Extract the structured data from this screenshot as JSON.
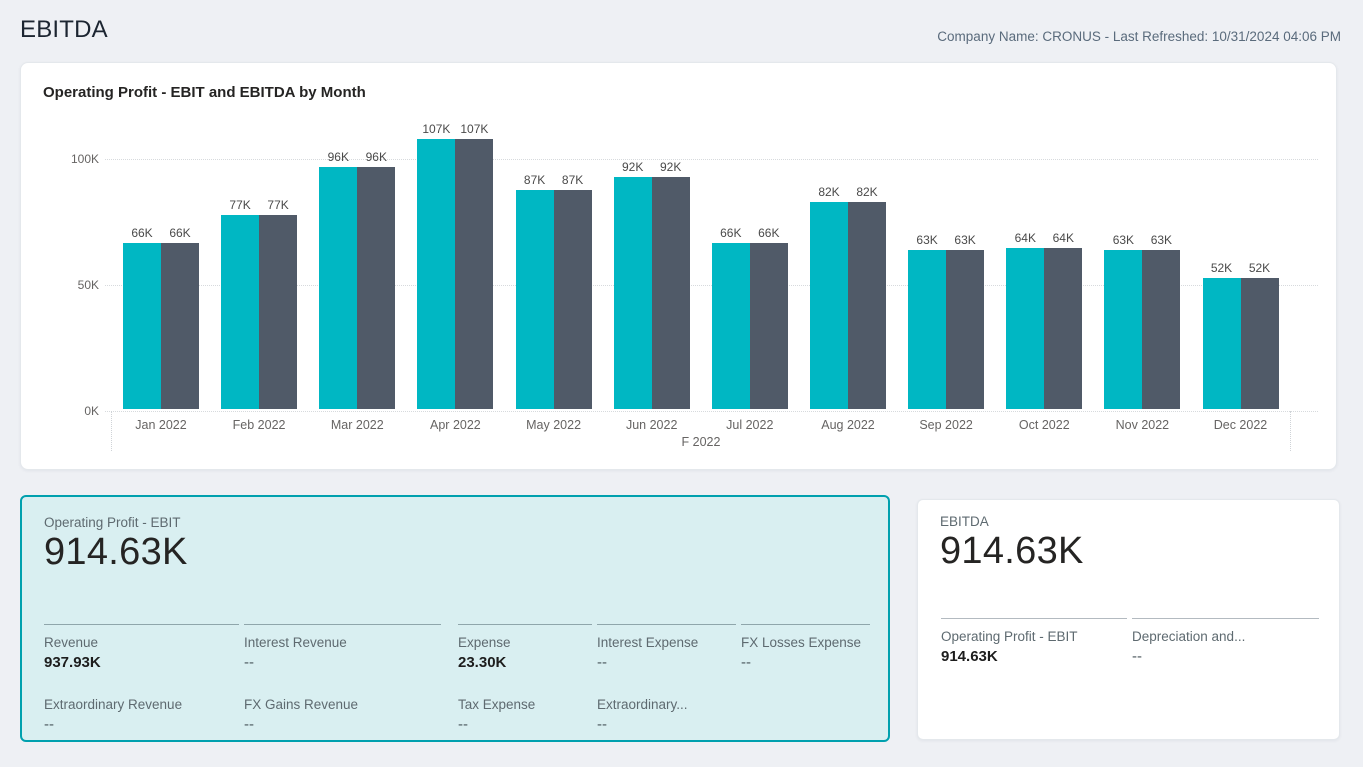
{
  "header": {
    "title": "EBITDA",
    "company_info": "Company Name: CRONUS - Last Refreshed: 10/31/2024 04:06 PM"
  },
  "chart_data": {
    "type": "bar",
    "title": "Operating Profit - EBIT and EBITDA by Month",
    "categories": [
      "Jan 2022",
      "Feb 2022",
      "Mar 2022",
      "Apr 2022",
      "May 2022",
      "Jun 2022",
      "Jul 2022",
      "Aug 2022",
      "Sep 2022",
      "Oct 2022",
      "Nov 2022",
      "Dec 2022"
    ],
    "series": [
      {
        "name": "Operating Profit - EBIT",
        "color": "#00b7c3",
        "values": [
          66,
          77,
          96,
          107,
          87,
          92,
          66,
          82,
          63,
          64,
          63,
          52
        ]
      },
      {
        "name": "EBITDA",
        "color": "#505a68",
        "values": [
          66,
          77,
          96,
          107,
          87,
          92,
          66,
          82,
          63,
          64,
          63,
          52
        ]
      }
    ],
    "bar_labels": [
      "66K",
      "77K",
      "96K",
      "107K",
      "87K",
      "92K",
      "66K",
      "82K",
      "63K",
      "64K",
      "63K",
      "52K"
    ],
    "xlabel": "F 2022",
    "ylabel": "",
    "y_ticks": [
      "0K",
      "50K",
      "100K"
    ],
    "y_unit": "K",
    "ylim": [
      0,
      110
    ],
    "grid": "horizontal-dotted",
    "legend_position": "none"
  },
  "cards": {
    "ebit": {
      "title": "Operating Profit - EBIT",
      "value": "914.63K",
      "groups": [
        {
          "rows": [
            [
              {
                "label": "Revenue",
                "value": "937.93K",
                "bold": true
              },
              {
                "label": "Interest Revenue",
                "value": "--",
                "bold": false
              }
            ],
            [
              {
                "label": "Extraordinary Revenue",
                "value": "--",
                "bold": false
              },
              {
                "label": "FX Gains Revenue",
                "value": "--",
                "bold": false
              }
            ]
          ]
        },
        {
          "rows": [
            [
              {
                "label": "Expense",
                "value": "23.30K",
                "bold": true
              },
              {
                "label": "Interest Expense",
                "value": "--",
                "bold": false
              },
              {
                "label": "FX Losses Expense",
                "value": "--",
                "bold": false
              }
            ],
            [
              {
                "label": "Tax Expense",
                "value": "--",
                "bold": false
              },
              {
                "label": "Extraordinary...",
                "value": "--",
                "bold": false
              }
            ]
          ]
        }
      ]
    },
    "ebitda": {
      "title": "EBITDA",
      "value": "914.63K",
      "groups": [
        {
          "rows": [
            [
              {
                "label": "Operating Profit - EBIT",
                "value": "914.63K",
                "bold": true
              },
              {
                "label": "Depreciation and...",
                "value": "--",
                "bold": false
              }
            ]
          ]
        }
      ]
    }
  }
}
